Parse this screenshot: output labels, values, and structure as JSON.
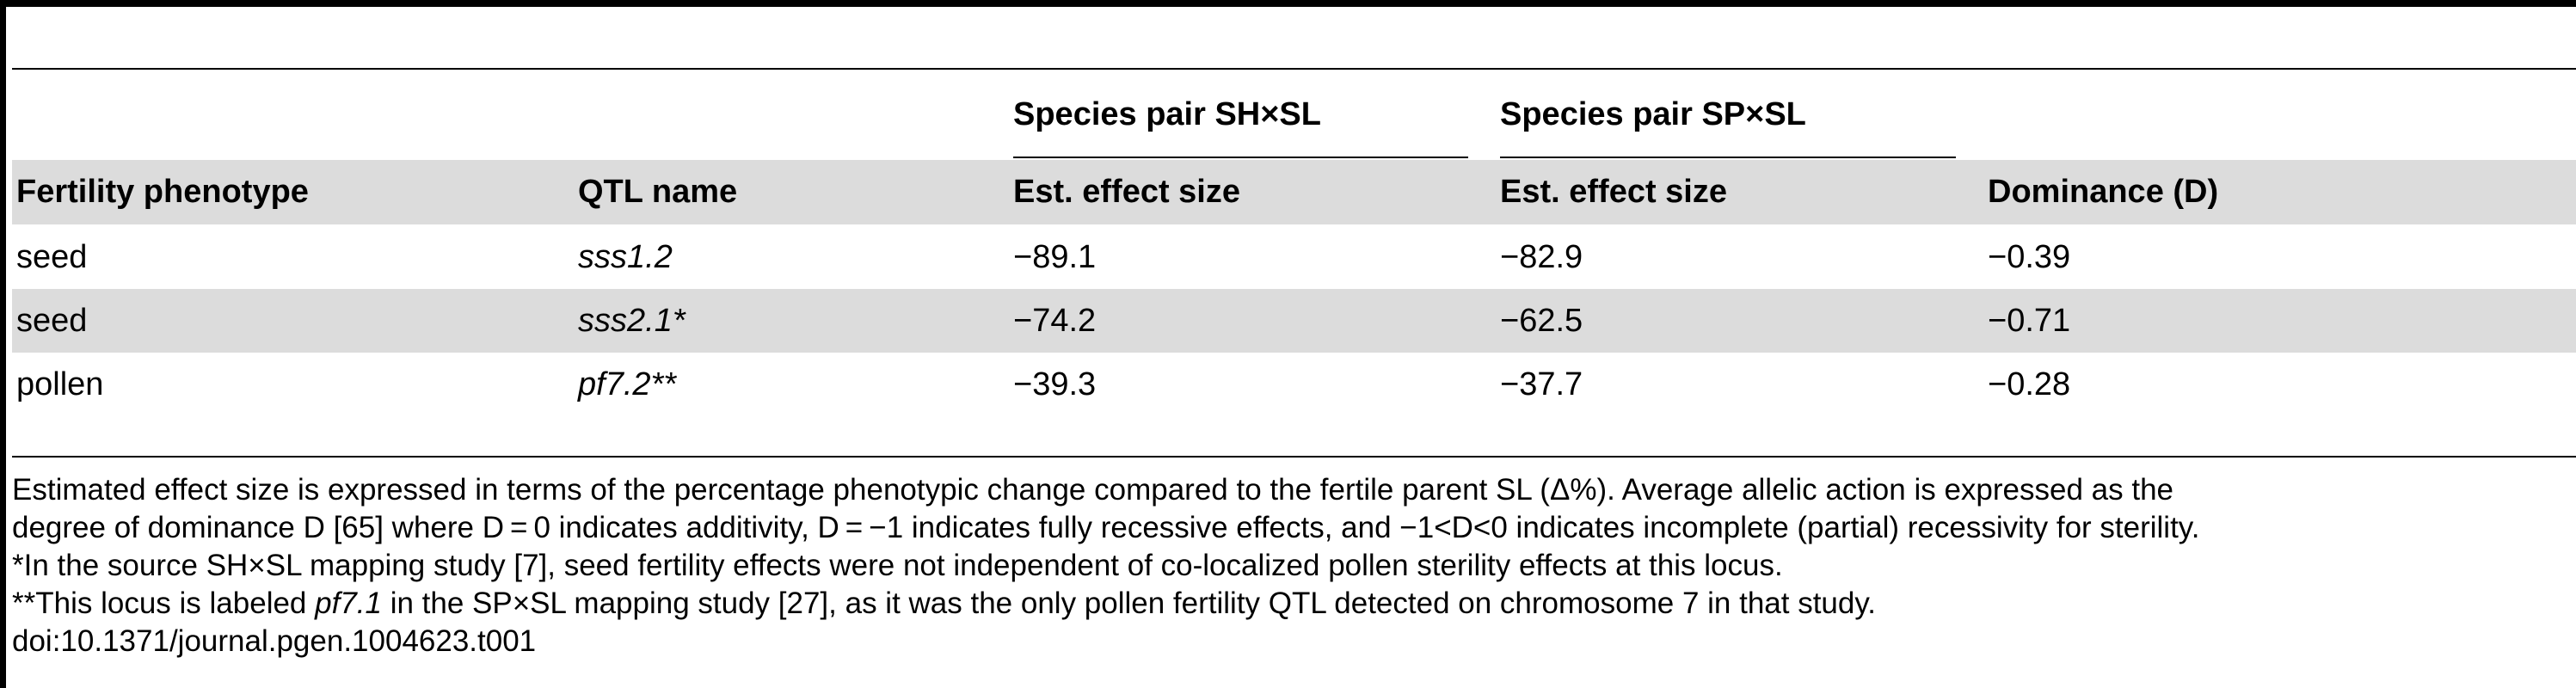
{
  "table": {
    "group_headers": {
      "sh_sl": "Species pair SH×SL",
      "sp_sl": "Species pair SP×SL"
    },
    "columns": {
      "phenotype": "Fertility phenotype",
      "qtl": "QTL name",
      "sh_effect": "Est. effect size",
      "sp_effect": "Est. effect size",
      "dominance": "Dominance (D)"
    },
    "rows": [
      {
        "phenotype": "seed",
        "qtl": "sss1.2",
        "sh_effect": "−89.1",
        "sp_effect": "−82.9",
        "dominance": "−0.39"
      },
      {
        "phenotype": "seed",
        "qtl": "sss2.1*",
        "sh_effect": "−74.2",
        "sp_effect": "−62.5",
        "dominance": "−0.71"
      },
      {
        "phenotype": "pollen",
        "qtl": "pf7.2**",
        "sh_effect": "−39.3",
        "sp_effect": "−37.7",
        "dominance": "−0.28"
      }
    ]
  },
  "footnotes": {
    "line1": "Estimated effect size is expressed in terms of the percentage phenotypic change compared to the fertile parent SL (Δ%). Average allelic action is expressed as the",
    "line2": "degree of dominance D [65] where D = 0 indicates additivity, D = −1 indicates fully recessive effects, and −1<D<0 indicates incomplete (partial) recessivity for sterility.",
    "line3": "*In the source SH×SL mapping study [7], seed fertility effects were not independent of co-localized pollen sterility effects at this locus.",
    "line4_before": "**This locus is labeled ",
    "line4_italic": "pf7.1",
    "line4_after": " in the SP×SL mapping study [27], as it was the only pollen fertility QTL detected on chromosome 7 in that study.",
    "doi": "doi:10.1371/journal.pgen.1004623.t001"
  }
}
